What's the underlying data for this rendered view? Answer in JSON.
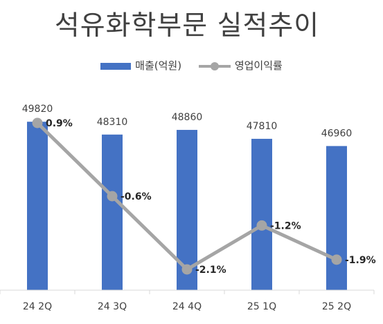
{
  "chart_data": {
    "type": "bar",
    "title": "석유화학부문 실적추이",
    "categories": [
      "24 2Q",
      "24 3Q",
      "24 4Q",
      "25 1Q",
      "25 2Q"
    ],
    "series": [
      {
        "name": "매출(억원)",
        "type": "bar",
        "color": "#4472C4",
        "values": [
          49820,
          48310,
          48860,
          47810,
          46960
        ],
        "labels": [
          "49820",
          "48310",
          "48860",
          "47810",
          "46960"
        ],
        "axis": "primary"
      },
      {
        "name": "영업이익률",
        "type": "line",
        "color": "#A5A5A5",
        "values": [
          0.9,
          -0.6,
          -2.1,
          -1.2,
          -1.9
        ],
        "labels": [
          "0.9%",
          "-0.6%",
          "-2.1%",
          "-1.2%",
          "-1.9%"
        ],
        "axis": "secondary"
      }
    ],
    "legend": "top",
    "grid": false
  }
}
